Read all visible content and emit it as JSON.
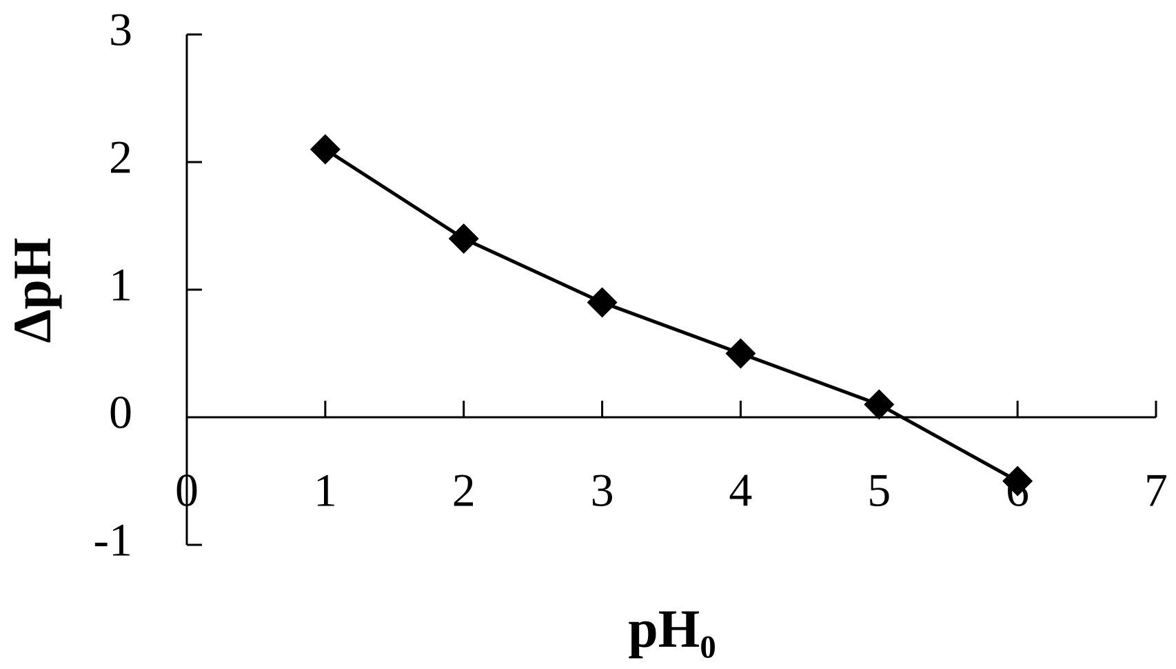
{
  "chart_data": {
    "type": "line",
    "x_label": "pH₀",
    "y_label": "ΔpH",
    "x": [
      1,
      2,
      3,
      4,
      5,
      6
    ],
    "series": [
      {
        "color": "#000000",
        "values": [
          2.1,
          1.4,
          0.9,
          0.5,
          0.1,
          -0.5
        ]
      }
    ],
    "xlim": [
      0,
      7
    ],
    "xticks": [
      0,
      1,
      2,
      3,
      4,
      5,
      6,
      7
    ],
    "ylim": [
      -1,
      3
    ],
    "yticks": [
      -1,
      0,
      1,
      2,
      3
    ],
    "marker": "diamond",
    "grid": false
  }
}
